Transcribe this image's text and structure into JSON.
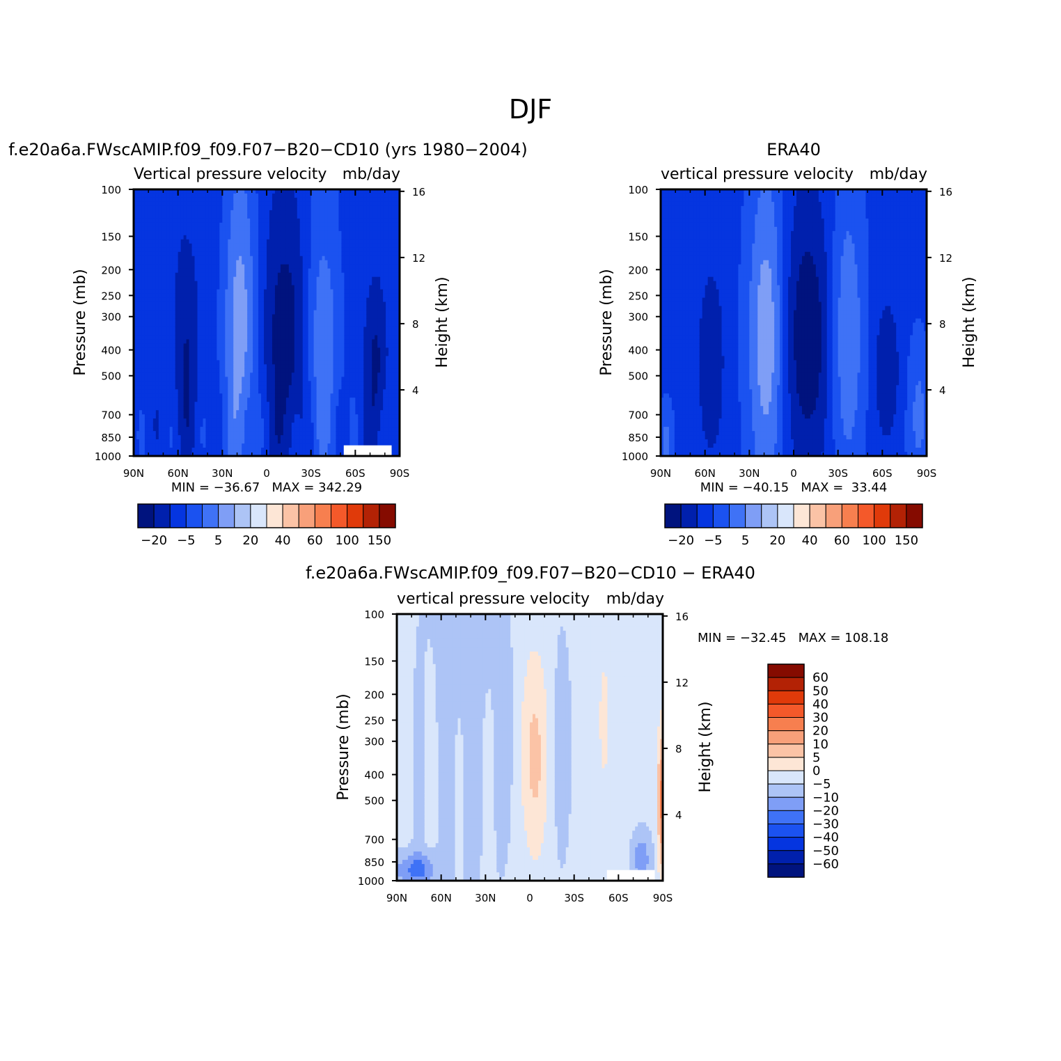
{
  "figure": {
    "title": "DJF"
  },
  "chart_data": [
    {
      "type": "heatmap",
      "title": "f.e20a6a.FWscAMIP.f09_f09.F07-B20-CD10 (yrs 1980-2004)",
      "subtitle_left": "Vertical pressure velocity",
      "subtitle_right": "mb/day",
      "ylabel": "Pressure (mb)",
      "y2label": "Height (km)",
      "x_ticks": [
        "90N",
        "60N",
        "30N",
        "0",
        "30S",
        "60S",
        "90S"
      ],
      "y_ticks": [
        100,
        150,
        200,
        250,
        300,
        400,
        500,
        700,
        850,
        1000
      ],
      "y2_ticks": [
        16,
        12,
        8,
        4
      ],
      "ylim": [
        1000,
        100
      ],
      "minmax_text": "MIN = -36.67   MAX = 342.29",
      "colorbar": {
        "orientation": "horizontal",
        "tick_labels": [
          "-20",
          "-5",
          "5",
          "20",
          "40",
          "60",
          "100",
          "150"
        ]
      }
    },
    {
      "type": "heatmap",
      "title": "ERA40",
      "subtitle_left": "vertical pressure velocity",
      "subtitle_right": "mb/day",
      "ylabel": "Pressure (mb)",
      "y2label": "Height (km)",
      "x_ticks": [
        "90N",
        "60N",
        "30N",
        "0",
        "30S",
        "60S",
        "90S"
      ],
      "y_ticks": [
        100,
        150,
        200,
        250,
        300,
        400,
        500,
        700,
        850,
        1000
      ],
      "y2_ticks": [
        16,
        12,
        8,
        4
      ],
      "ylim": [
        1000,
        100
      ],
      "minmax_text": "MIN = -40.15   MAX =  33.44",
      "colorbar": {
        "orientation": "horizontal",
        "tick_labels": [
          "-20",
          "-5",
          "5",
          "20",
          "40",
          "60",
          "100",
          "150"
        ]
      }
    },
    {
      "type": "heatmap",
      "title": "f.e20a6a.FWscAMIP.f09_f09.F07-B20-CD10 - ERA40",
      "subtitle_left": "vertical pressure velocity",
      "subtitle_right": "mb/day",
      "ylabel": "Pressure (mb)",
      "y2label": "Height (km)",
      "x_ticks": [
        "90N",
        "60N",
        "30N",
        "0",
        "30S",
        "60S",
        "90S"
      ],
      "y_ticks": [
        100,
        150,
        200,
        250,
        300,
        400,
        500,
        700,
        850,
        1000
      ],
      "y2_ticks": [
        16,
        12,
        8,
        4
      ],
      "ylim": [
        1000,
        100
      ],
      "minmax_text": "MIN = -32.45   MAX = 108.18",
      "colorbar": {
        "orientation": "vertical",
        "tick_labels": [
          "60",
          "50",
          "40",
          "30",
          "20",
          "10",
          "5",
          "0",
          "-5",
          "-10",
          "-20",
          "-30",
          "-40",
          "-50",
          "-60"
        ]
      }
    }
  ],
  "colors": {
    "palette": [
      "#00137e",
      "#0020ad",
      "#0535e0",
      "#1b52f0",
      "#3f72f6",
      "#7f9ef6",
      "#adc4f6",
      "#d9e6fb",
      "#fde6d6",
      "#fbc3a6",
      "#f8a07a",
      "#f77f4f",
      "#f4592a",
      "#e03a0a",
      "#b32205",
      "#850b00"
    ],
    "diff_palette": [
      "#00137e",
      "#0020ad",
      "#0535e0",
      "#1b52f0",
      "#3f72f6",
      "#7f9ef6",
      "#adc4f6",
      "#d9e6fb",
      "#fde6d6",
      "#fbc3a6",
      "#f8a07a",
      "#f77f4f",
      "#f4592a",
      "#e03a0a",
      "#b32205",
      "#850b00"
    ]
  }
}
